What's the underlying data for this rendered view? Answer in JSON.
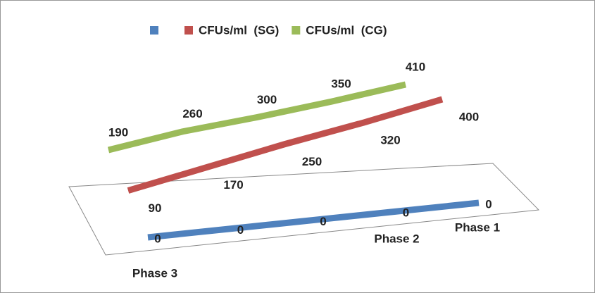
{
  "chart_data": {
    "type": "line3d",
    "categories": [
      "Phase 3",
      null,
      null,
      "Phase 2",
      "Phase 1"
    ],
    "series": [
      {
        "color": "#4f81bd",
        "values": [
          0,
          0,
          0,
          0,
          0
        ]
      },
      {
        "name": "CFUs/ml  (SG)",
        "color": "#c0504d",
        "values": [
          90,
          170,
          250,
          320,
          400
        ]
      },
      {
        "name": "CFUs/ml  (CG)",
        "color": "#9bbb59",
        "values": [
          190,
          260,
          300,
          350,
          410
        ]
      }
    ]
  }
}
